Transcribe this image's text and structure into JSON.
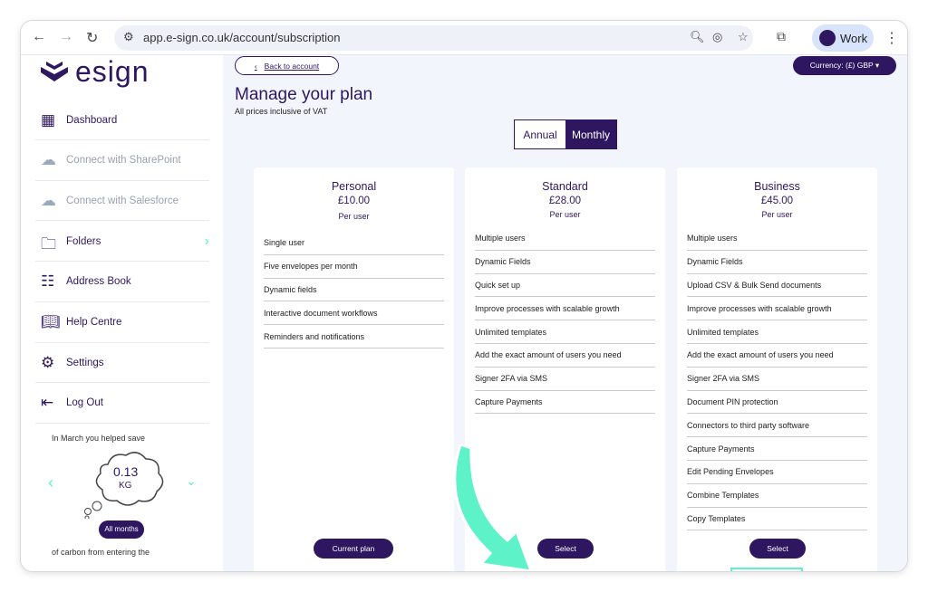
{
  "browser": {
    "url": "app.e-sign.co.uk/account/subscription",
    "profile": "Work"
  },
  "sidebar": {
    "logo": "esign",
    "items": [
      {
        "label": "Dashboard",
        "icon": "dashboard-icon"
      },
      {
        "label": "Connect with SharePoint",
        "icon": "sharepoint-icon",
        "disabled": true
      },
      {
        "label": "Connect with Salesforce",
        "icon": "salesforce-icon",
        "disabled": true
      },
      {
        "label": "Folders",
        "icon": "folder-icon"
      },
      {
        "label": "Address Book",
        "icon": "address-book-icon"
      },
      {
        "label": "Help Centre",
        "icon": "book-icon"
      },
      {
        "label": "Settings",
        "icon": "gear-icon"
      },
      {
        "label": "Log Out",
        "icon": "logout-icon"
      }
    ],
    "carbon": {
      "intro": "In March you helped save",
      "value": "0.13",
      "unit": "KG",
      "button": "All months",
      "outro": "of carbon from entering the"
    }
  },
  "main": {
    "back": "Back to account",
    "currency": "Currency: (£) GBP ▾",
    "title": "Manage your plan",
    "subtitle": "All prices inclusive of VAT",
    "billing": {
      "options": [
        "Annual",
        "Monthly"
      ],
      "selected": "Monthly"
    },
    "plans": [
      {
        "name": "Personal",
        "price": "£10.00",
        "per": "Per user",
        "button": "Current plan",
        "features": [
          "Single user",
          "Five envelopes per month",
          "Dynamic fields",
          "Interactive document workflows",
          "Reminders and notifications"
        ]
      },
      {
        "name": "Standard",
        "price": "£28.00",
        "per": "Per user",
        "button": "Select",
        "features": [
          "Multiple users",
          "Dynamic Fields",
          "Quick set up",
          "Improve processes with scalable growth",
          "Unlimited templates",
          "Add the exact amount of users you need",
          "Signer 2FA via SMS",
          "Capture Payments"
        ]
      },
      {
        "name": "Business",
        "price": "£45.00",
        "per": "Per user",
        "button": "Select",
        "features": [
          "Multiple users",
          "Dynamic Fields",
          "Upload CSV & Bulk Send documents",
          "Improve processes with scalable growth",
          "Unlimited templates",
          "Add the exact amount of users you need",
          "Signer 2FA via SMS",
          "Document PIN protection",
          "Connectors to third party software",
          "Capture Payments",
          "Edit Pending Envelopes",
          "Combine Templates",
          "Copy Templates"
        ]
      }
    ]
  },
  "colors": {
    "brand": "#2e1760",
    "accent": "#5ef2c8",
    "background": "#f3f5fd"
  }
}
